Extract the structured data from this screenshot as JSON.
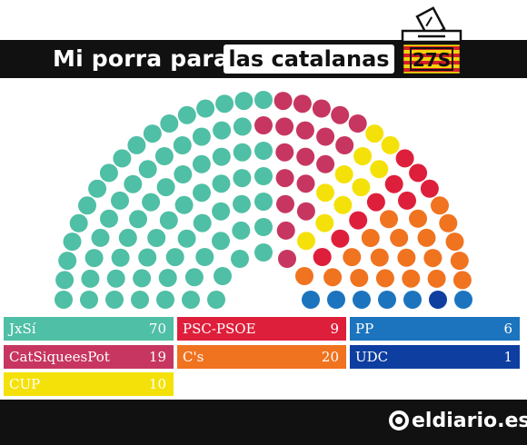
{
  "header": {
    "title_left": "Mi porra para",
    "title_right": "las catalanas",
    "badge": "27S",
    "badge_colors": {
      "yellow": "#f4d20b",
      "red": "#d41e26"
    }
  },
  "chart_data": {
    "type": "parliament",
    "total_seats": 135,
    "series": [
      {
        "name": "JxSí",
        "seats": 70,
        "color": "#4fbfa5"
      },
      {
        "name": "CatSiqueesPot",
        "seats": 19,
        "color": "#c73660"
      },
      {
        "name": "CUP",
        "seats": 10,
        "color": "#f5e10a"
      },
      {
        "name": "PSC-PSOE",
        "seats": 9,
        "color": "#de1f3b"
      },
      {
        "name": "C's",
        "seats": 20,
        "color": "#f07320"
      },
      {
        "name": "PP",
        "seats": 6,
        "color": "#1c74be"
      },
      {
        "name": "UDC",
        "seats": 1,
        "color": "#0e3ea0"
      }
    ]
  },
  "legend": [
    {
      "name": "JxSí",
      "seats": "70",
      "color": "#4fbfa5"
    },
    {
      "name": "PSC-PSOE",
      "seats": "9",
      "color": "#de1f3b"
    },
    {
      "name": "PP",
      "seats": "6",
      "color": "#1c74be"
    },
    {
      "name": "CatSiqueesPot",
      "seats": "19",
      "color": "#c73660"
    },
    {
      "name": "C's",
      "seats": "20",
      "color": "#f07320"
    },
    {
      "name": "UDC",
      "seats": "1",
      "color": "#0e3ea0"
    },
    {
      "name": "CUP",
      "seats": "10",
      "color": "#f5e10a"
    }
  ],
  "footer": {
    "logo_text": "eldiario.es"
  }
}
